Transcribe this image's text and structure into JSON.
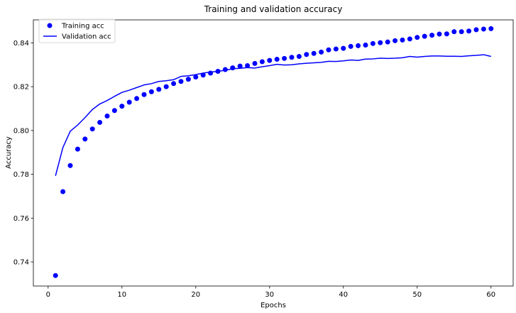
{
  "chart_data": {
    "type": "scatter",
    "title": "Training and validation accuracy",
    "xlabel": "Epochs",
    "ylabel": "Accuracy",
    "xlim": [
      -2,
      63
    ],
    "ylim": [
      0.729,
      0.8505
    ],
    "x_ticks": [
      0,
      10,
      20,
      30,
      40,
      50,
      60
    ],
    "y_ticks": [
      0.74,
      0.76,
      0.78,
      0.8,
      0.82,
      0.84
    ],
    "legend_position": "top-left",
    "grid": false,
    "series": [
      {
        "name": "Training acc",
        "style": "points",
        "color": "#0000ff",
        "x": [
          1,
          2,
          3,
          4,
          5,
          6,
          7,
          8,
          9,
          10,
          11,
          12,
          13,
          14,
          15,
          16,
          17,
          18,
          19,
          20,
          21,
          22,
          23,
          24,
          25,
          26,
          27,
          28,
          29,
          30,
          31,
          32,
          33,
          34,
          35,
          36,
          37,
          38,
          39,
          40,
          41,
          42,
          43,
          44,
          45,
          46,
          47,
          48,
          49,
          50,
          51,
          52,
          53,
          54,
          55,
          56,
          57,
          58,
          59,
          60
        ],
        "values": [
          0.7338,
          0.7721,
          0.784,
          0.7915,
          0.7961,
          0.8007,
          0.8037,
          0.8066,
          0.8091,
          0.8111,
          0.8129,
          0.8146,
          0.8164,
          0.8177,
          0.8188,
          0.82,
          0.8214,
          0.8224,
          0.8234,
          0.8244,
          0.8253,
          0.8262,
          0.827,
          0.8278,
          0.8286,
          0.8294,
          0.8296,
          0.8306,
          0.8314,
          0.832,
          0.8325,
          0.8329,
          0.8334,
          0.8338,
          0.8347,
          0.8352,
          0.8358,
          0.8368,
          0.8372,
          0.8375,
          0.8384,
          0.8387,
          0.839,
          0.8397,
          0.8401,
          0.8404,
          0.841,
          0.8413,
          0.8418,
          0.8425,
          0.843,
          0.8435,
          0.844,
          0.8441,
          0.8451,
          0.8451,
          0.8454,
          0.846,
          0.8463,
          0.8465
        ]
      },
      {
        "name": "Validation acc",
        "style": "line",
        "color": "#0000ff",
        "x": [
          1,
          2,
          3,
          4,
          5,
          6,
          7,
          8,
          9,
          10,
          11,
          12,
          13,
          14,
          15,
          16,
          17,
          18,
          19,
          20,
          21,
          22,
          23,
          24,
          25,
          26,
          27,
          28,
          29,
          30,
          31,
          32,
          33,
          34,
          35,
          36,
          37,
          38,
          39,
          40,
          41,
          42,
          43,
          44,
          45,
          46,
          47,
          48,
          49,
          50,
          51,
          52,
          53,
          54,
          55,
          56,
          57,
          58,
          59,
          60
        ],
        "values": [
          0.7793,
          0.7922,
          0.7997,
          0.8025,
          0.8059,
          0.8096,
          0.8121,
          0.8137,
          0.8156,
          0.8174,
          0.8184,
          0.8196,
          0.8208,
          0.8214,
          0.8224,
          0.8227,
          0.8232,
          0.8247,
          0.825,
          0.8255,
          0.8262,
          0.8267,
          0.827,
          0.8275,
          0.8282,
          0.8284,
          0.8287,
          0.8285,
          0.8291,
          0.8296,
          0.8302,
          0.8299,
          0.83,
          0.8304,
          0.8307,
          0.8309,
          0.8311,
          0.8316,
          0.8315,
          0.8318,
          0.8322,
          0.832,
          0.8326,
          0.8327,
          0.833,
          0.8329,
          0.833,
          0.8332,
          0.8338,
          0.8335,
          0.8338,
          0.834,
          0.834,
          0.8339,
          0.8339,
          0.8338,
          0.8341,
          0.8343,
          0.8346,
          0.8338
        ]
      }
    ]
  }
}
